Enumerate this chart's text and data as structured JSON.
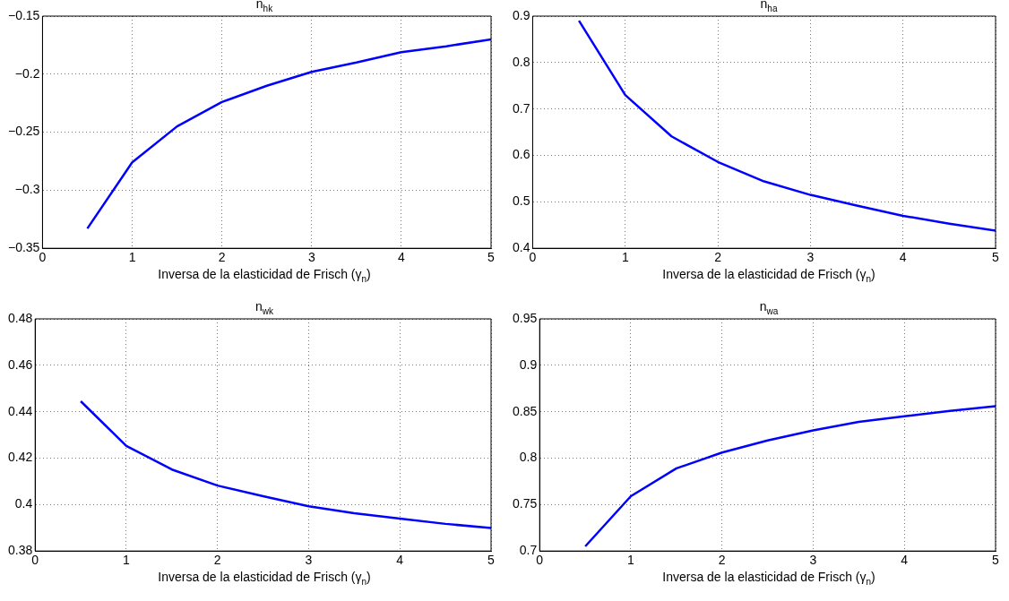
{
  "chart_data": [
    {
      "type": "line",
      "title": "n$_{hk}$",
      "xlabel": "Inversa de la elasticidad de Frisch (γ$_{n}$)",
      "x": [
        0.5,
        1,
        1.5,
        2,
        2.5,
        3,
        3.5,
        4,
        4.5,
        5
      ],
      "series": [
        {
          "type": "line",
          "color": "#0000ff",
          "values": [
            -0.333,
            -0.276,
            -0.245,
            -0.224,
            -0.21,
            -0.198,
            -0.19,
            -0.181,
            -0.176,
            -0.17
          ]
        }
      ],
      "xlim": [
        0,
        5
      ],
      "xticks": [
        0,
        1,
        2,
        3,
        4,
        5
      ],
      "ylim": [
        -0.35,
        -0.15
      ],
      "yticks": [
        {
          "value": -0.35,
          "label": "−0.35"
        },
        {
          "value": -0.3,
          "label": "−0.3"
        },
        {
          "value": -0.25,
          "label": "−0.25"
        },
        {
          "value": -0.2,
          "label": "−0.2"
        },
        {
          "value": -0.15,
          "label": "−0.15"
        }
      ],
      "grid": true
    },
    {
      "type": "line",
      "title": "n$_{ha}$",
      "xlabel": "Inversa de la elasticidad de Frisch (γ$_{n}$)",
      "x": [
        0.5,
        1,
        1.5,
        2,
        2.5,
        3,
        3.5,
        4,
        4.5,
        5
      ],
      "series": [
        {
          "type": "line",
          "color": "#0000ff",
          "values": [
            0.89,
            0.73,
            0.641,
            0.586,
            0.544,
            0.515,
            0.492,
            0.47,
            0.453,
            0.438
          ]
        }
      ],
      "xlim": [
        0,
        5
      ],
      "xticks": [
        0,
        1,
        2,
        3,
        4,
        5
      ],
      "ylim": [
        0.4,
        0.9
      ],
      "yticks": [
        0.4,
        0.5,
        0.6,
        0.7,
        0.8,
        0.9
      ],
      "grid": true
    },
    {
      "type": "line",
      "title": "n$_{wk}$",
      "xlabel": "Inversa de la elasticidad de Frisch (γ$_{n}$)",
      "x": [
        0.5,
        1,
        1.5,
        2,
        2.5,
        3,
        3.5,
        4,
        4.5,
        5
      ],
      "series": [
        {
          "type": "line",
          "color": "#0000ff",
          "values": [
            0.4445,
            0.4253,
            0.4151,
            0.4082,
            0.4036,
            0.3993,
            0.3963,
            0.394,
            0.3917,
            0.3899
          ]
        }
      ],
      "xlim": [
        0,
        5
      ],
      "xticks": [
        0,
        1,
        2,
        3,
        4,
        5
      ],
      "ylim": [
        0.38,
        0.48
      ],
      "yticks": [
        0.38,
        0.4,
        0.42,
        0.44,
        0.46,
        0.48
      ],
      "grid": true
    },
    {
      "type": "line",
      "title": "n$_{wa}$",
      "xlabel": "Inversa de la elasticidad de Frisch (γ$_{n}$)",
      "x": [
        0.5,
        1,
        1.5,
        2,
        2.5,
        3,
        3.5,
        4,
        4.5,
        5
      ],
      "series": [
        {
          "type": "line",
          "color": "#0000ff",
          "values": [
            0.705,
            0.759,
            0.789,
            0.806,
            0.819,
            0.83,
            0.839,
            0.845,
            0.851,
            0.856
          ]
        }
      ],
      "xlim": [
        0,
        5
      ],
      "xticks": [
        0,
        1,
        2,
        3,
        4,
        5
      ],
      "ylim": [
        0.7,
        0.95
      ],
      "yticks": [
        0.7,
        0.75,
        0.8,
        0.85,
        0.9,
        0.95
      ],
      "grid": true
    }
  ]
}
